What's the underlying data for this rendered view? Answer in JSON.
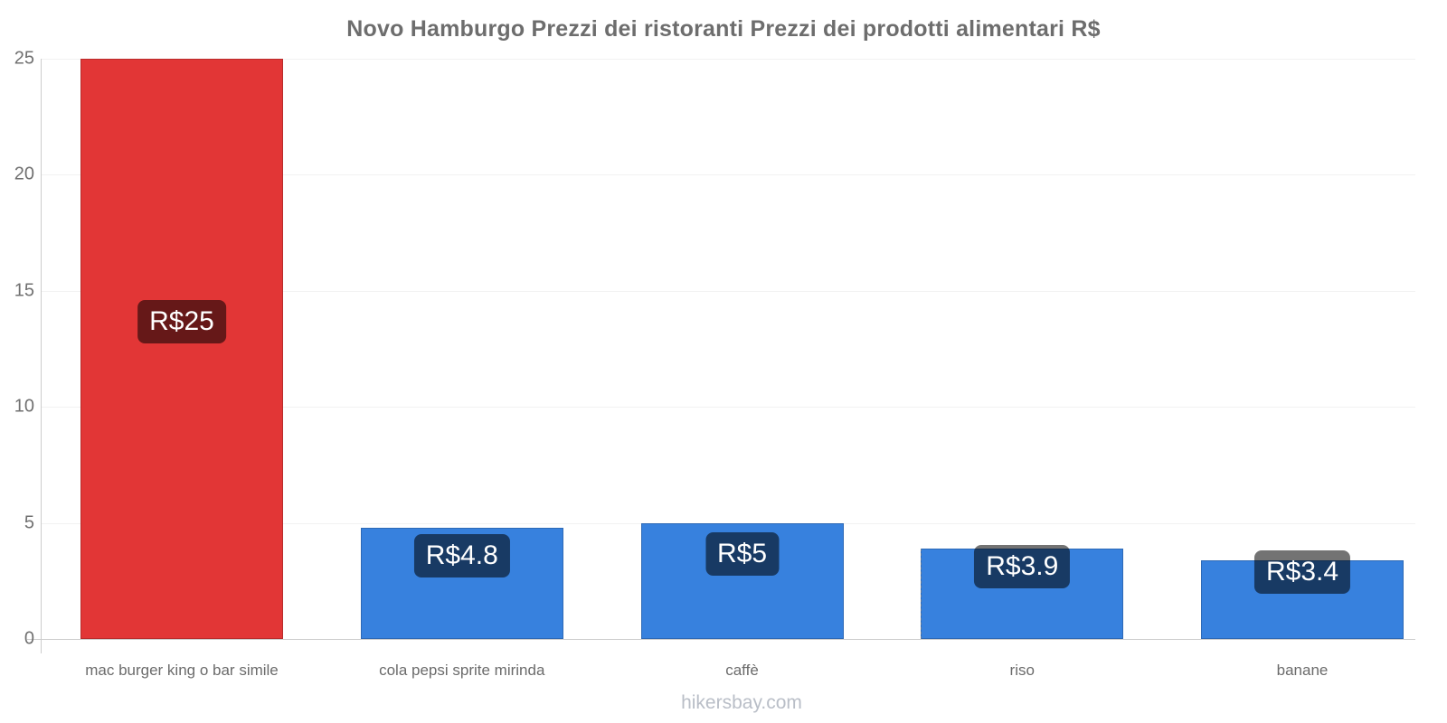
{
  "title": "Novo Hamburgo Prezzi dei ristoranti Prezzi dei prodotti alimentari R$",
  "footer": {
    "text": "hikersbay.com"
  },
  "chart_data": {
    "type": "bar",
    "title": "Novo Hamburgo Prezzi dei ristoranti Prezzi dei prodotti alimentari R$",
    "categories": [
      "mac burger king o bar simile",
      "cola pepsi sprite mirinda",
      "caffè",
      "riso",
      "banane"
    ],
    "values": [
      25,
      4.8,
      5,
      3.9,
      3.4
    ],
    "value_labels": [
      "R$25",
      "R$4.8",
      "R$5",
      "R$3.9",
      "R$3.4"
    ],
    "bar_colors": [
      "#e23636",
      "#3781de",
      "#3781de",
      "#3781de",
      "#3781de"
    ],
    "currency": "R$",
    "xlabel": "",
    "ylabel": "",
    "ylim": [
      0,
      25
    ],
    "yticks": [
      0,
      5,
      10,
      15,
      20,
      25
    ],
    "grid": "horizontal-faint",
    "legend": "none",
    "guideline_bar_index": 3,
    "colors": {
      "red_bar": "#e23636",
      "blue_bar": "#3781de",
      "axis": "#cccccc",
      "gridline": "#f2f2f2",
      "title_text": "#6d6d6d",
      "tick_text": "#707070",
      "category_text": "#6b6b6b",
      "value_pill_bg": "rgba(0,0,0,0.55)",
      "value_pill_text": "#ffffff",
      "watermark_text": "#b9bec7"
    }
  }
}
